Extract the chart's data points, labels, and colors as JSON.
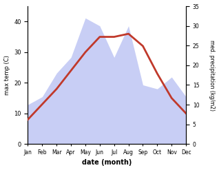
{
  "months": [
    "Jan",
    "Feb",
    "Mar",
    "Apr",
    "May",
    "Jun",
    "Jul",
    "Aug",
    "Sep",
    "Oct",
    "Nov",
    "Dec"
  ],
  "max_temp": [
    8,
    13,
    18,
    24,
    30,
    35,
    35,
    36,
    32,
    23,
    15,
    10
  ],
  "precipitation": [
    10,
    12,
    18,
    22,
    32,
    30,
    22,
    30,
    15,
    14,
    17,
    12
  ],
  "temp_color": "#c0392b",
  "precip_fill_color": "#c8cef5",
  "ylim_temp": [
    0,
    45
  ],
  "ylim_precip": [
    0,
    35
  ],
  "ylabel_left": "max temp (C)",
  "ylabel_right": "med. precipitation (kg/m2)",
  "xlabel": "date (month)",
  "bg_color": "#ffffff",
  "temp_linewidth": 2.0,
  "yticks_left": [
    0,
    10,
    20,
    30,
    40
  ],
  "yticks_right": [
    0,
    5,
    10,
    15,
    20,
    25,
    30,
    35
  ]
}
